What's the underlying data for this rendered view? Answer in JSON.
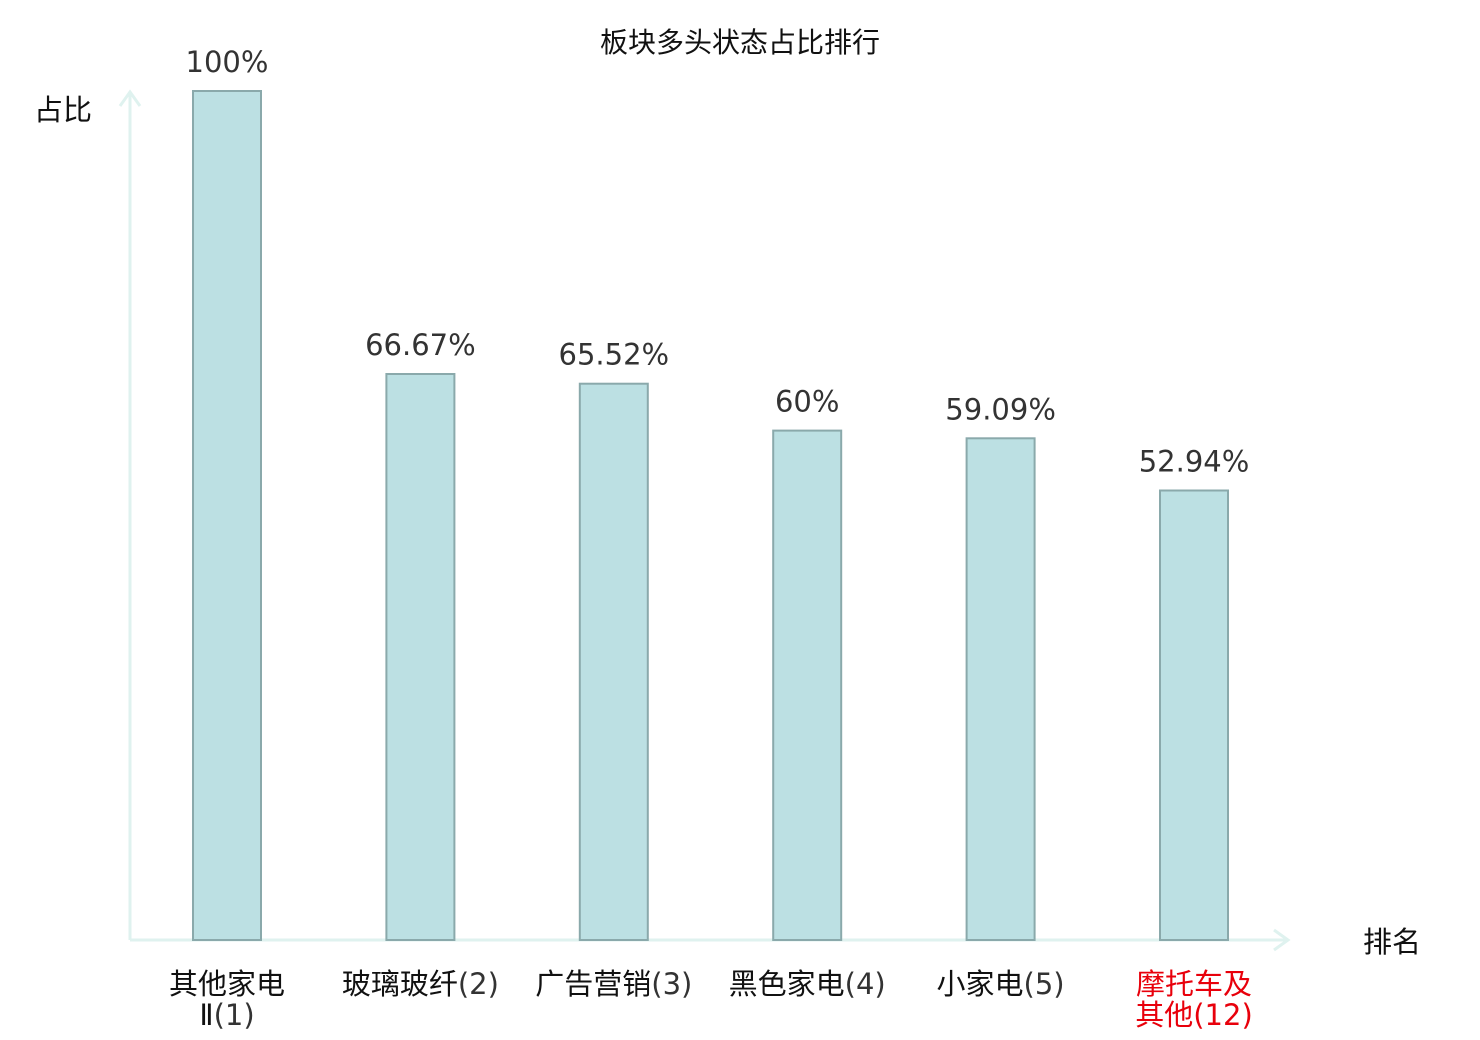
{
  "chart_data": {
    "type": "bar",
    "title": "板块多头状态占比排行",
    "ylabel": "占比",
    "xlabel": "排名",
    "ylim": [
      0,
      100
    ],
    "grid": false,
    "legend": "none",
    "categories": [
      {
        "name_lines": [
          "其他家电",
          "Ⅱ"
        ],
        "rank": "(1)",
        "highlight": false
      },
      {
        "name_lines": [
          "玻璃玻纤"
        ],
        "rank": "(2)",
        "highlight": false
      },
      {
        "name_lines": [
          "广告营销"
        ],
        "rank": "(3)",
        "highlight": false
      },
      {
        "name_lines": [
          "黑色家电"
        ],
        "rank": "(4)",
        "highlight": false
      },
      {
        "name_lines": [
          "小家电"
        ],
        "rank": "(5)",
        "highlight": false
      },
      {
        "name_lines": [
          "摩托车及",
          "其他"
        ],
        "rank": "(12)",
        "highlight": true
      }
    ],
    "values": [
      100,
      66.67,
      65.52,
      60,
      59.09,
      52.94
    ],
    "value_labels": [
      "100%",
      "66.67%",
      "65.52%",
      "60%",
      "59.09%",
      "52.94%"
    ],
    "colors": {
      "bar_fill": "#bce0e3",
      "bar_stroke": "#8aa9ab",
      "axis": "#dff2ef",
      "label_normal": "#111111",
      "rank_normal": "#333333",
      "label_highlight": "#e8000b"
    }
  }
}
